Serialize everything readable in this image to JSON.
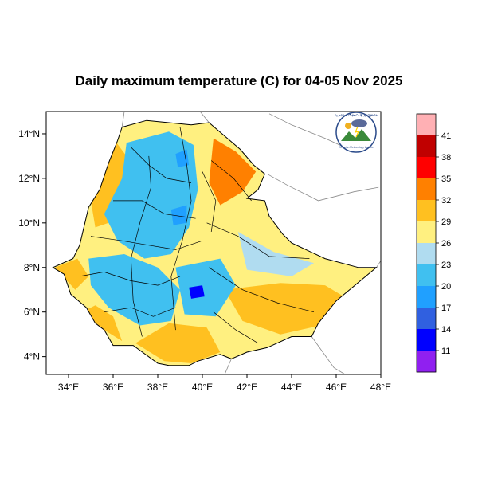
{
  "title": "Daily maximum temperature (C) for 04-05 Nov 2025",
  "map": {
    "lon_range": [
      33.0,
      48.0
    ],
    "lat_range": [
      3.2,
      15.0
    ],
    "x_ticks": [
      {
        "value": 34,
        "label": "34°E"
      },
      {
        "value": 36,
        "label": "36°E"
      },
      {
        "value": 38,
        "label": "38°E"
      },
      {
        "value": 40,
        "label": "40°E"
      },
      {
        "value": 42,
        "label": "42°E"
      },
      {
        "value": 44,
        "label": "44°E"
      },
      {
        "value": 46,
        "label": "46°E"
      },
      {
        "value": 48,
        "label": "48°E"
      }
    ],
    "y_ticks": [
      {
        "value": 14,
        "label": "14°N"
      },
      {
        "value": 12,
        "label": "12°N"
      },
      {
        "value": 10,
        "label": "10°N"
      },
      {
        "value": 8,
        "label": "8°N"
      },
      {
        "value": 6,
        "label": "6°N"
      },
      {
        "value": 4,
        "label": "4°N"
      }
    ],
    "ethiopia_outline": [
      [
        36.4,
        14.3
      ],
      [
        37.5,
        14.6
      ],
      [
        38.5,
        14.5
      ],
      [
        39.5,
        14.4
      ],
      [
        40.3,
        14.5
      ],
      [
        41.0,
        13.9
      ],
      [
        41.7,
        13.3
      ],
      [
        42.3,
        12.6
      ],
      [
        42.8,
        12.2
      ],
      [
        42.5,
        11.5
      ],
      [
        42.0,
        11.1
      ],
      [
        42.8,
        11.0
      ],
      [
        43.0,
        10.3
      ],
      [
        43.6,
        9.5
      ],
      [
        44.0,
        9.1
      ],
      [
        45.5,
        8.4
      ],
      [
        47.0,
        8.0
      ],
      [
        47.8,
        8.0
      ],
      [
        46.0,
        6.5
      ],
      [
        45.2,
        5.5
      ],
      [
        44.9,
        4.9
      ],
      [
        44.0,
        4.9
      ],
      [
        42.9,
        4.4
      ],
      [
        42.0,
        4.2
      ],
      [
        41.3,
        3.9
      ],
      [
        40.8,
        4.1
      ],
      [
        39.8,
        3.8
      ],
      [
        39.4,
        3.6
      ],
      [
        38.5,
        3.6
      ],
      [
        38.0,
        3.7
      ],
      [
        36.9,
        4.5
      ],
      [
        36.0,
        4.5
      ],
      [
        35.6,
        5.2
      ],
      [
        35.2,
        5.5
      ],
      [
        34.8,
        6.2
      ],
      [
        34.1,
        6.8
      ],
      [
        33.8,
        7.7
      ],
      [
        33.3,
        8.0
      ],
      [
        34.2,
        8.4
      ],
      [
        34.5,
        9.0
      ],
      [
        34.9,
        10.7
      ],
      [
        35.4,
        11.5
      ],
      [
        35.8,
        12.7
      ],
      [
        36.2,
        13.7
      ]
    ],
    "temperature_zones": [
      {
        "name": "warm-west-lowland",
        "value": 31,
        "points": [
          [
            35.0,
            11.0
          ],
          [
            35.5,
            12.5
          ],
          [
            36.0,
            13.8
          ],
          [
            36.6,
            13.0
          ],
          [
            36.4,
            11.5
          ],
          [
            35.8,
            10.0
          ],
          [
            35.2,
            9.8
          ]
        ]
      },
      {
        "name": "hot-afar",
        "value": 33,
        "points": [
          [
            40.5,
            13.8
          ],
          [
            41.5,
            13.2
          ],
          [
            42.4,
            12.3
          ],
          [
            41.8,
            11.4
          ],
          [
            40.8,
            10.8
          ],
          [
            40.3,
            11.8
          ]
        ]
      },
      {
        "name": "warm-east",
        "value": 28,
        "points": [
          [
            40.2,
            10.0
          ],
          [
            42.5,
            10.7
          ],
          [
            43.5,
            9.6
          ],
          [
            44.5,
            9.0
          ],
          [
            43.0,
            8.6
          ],
          [
            41.0,
            8.8
          ]
        ]
      },
      {
        "name": "warm-ogaden",
        "value": 30,
        "points": [
          [
            41.0,
            7.0
          ],
          [
            43.5,
            7.3
          ],
          [
            45.5,
            7.2
          ],
          [
            46.5,
            6.6
          ],
          [
            45.3,
            5.4
          ],
          [
            43.5,
            5.0
          ],
          [
            41.8,
            5.6
          ]
        ]
      },
      {
        "name": "warm-south",
        "value": 30,
        "points": [
          [
            37.0,
            4.6
          ],
          [
            38.3,
            3.8
          ],
          [
            39.5,
            3.7
          ],
          [
            40.8,
            4.2
          ],
          [
            40.2,
            5.3
          ],
          [
            38.5,
            5.5
          ]
        ]
      },
      {
        "name": "warm-southwest",
        "value": 29,
        "points": [
          [
            34.6,
            6.0
          ],
          [
            35.6,
            5.2
          ],
          [
            36.4,
            4.7
          ],
          [
            36.0,
            5.8
          ],
          [
            35.2,
            6.3
          ]
        ]
      },
      {
        "name": "warm-gambela",
        "value": 29,
        "points": [
          [
            33.4,
            8.0
          ],
          [
            34.3,
            7.0
          ],
          [
            34.9,
            7.6
          ],
          [
            34.4,
            8.4
          ]
        ]
      },
      {
        "name": "cool-central-highlands",
        "value": 22,
        "points": [
          [
            36.6,
            13.6
          ],
          [
            38.5,
            14.1
          ],
          [
            39.6,
            13.5
          ],
          [
            39.8,
            11.5
          ],
          [
            39.4,
            9.8
          ],
          [
            38.6,
            8.6
          ],
          [
            37.4,
            8.4
          ],
          [
            36.2,
            9.2
          ],
          [
            35.6,
            10.4
          ],
          [
            36.4,
            12.0
          ]
        ]
      },
      {
        "name": "cool-southwest-highlands",
        "value": 21,
        "points": [
          [
            34.9,
            8.4
          ],
          [
            36.5,
            8.6
          ],
          [
            38.0,
            8.0
          ],
          [
            39.0,
            7.0
          ],
          [
            38.6,
            5.6
          ],
          [
            37.2,
            5.4
          ],
          [
            35.8,
            6.2
          ],
          [
            35.0,
            7.2
          ]
        ]
      },
      {
        "name": "cool-bale",
        "value": 20,
        "points": [
          [
            38.8,
            8.0
          ],
          [
            40.8,
            8.4
          ],
          [
            41.5,
            7.2
          ],
          [
            40.6,
            5.8
          ],
          [
            39.2,
            5.9
          ]
        ]
      },
      {
        "name": "mild-east-highlands",
        "value": 24,
        "points": [
          [
            41.6,
            9.6
          ],
          [
            43.2,
            8.7
          ],
          [
            45.0,
            8.2
          ],
          [
            44.0,
            7.6
          ],
          [
            42.0,
            7.9
          ]
        ]
      },
      {
        "name": "cold-peak-semien",
        "value": 17,
        "points": [
          [
            38.8,
            13.1
          ],
          [
            39.3,
            13.3
          ],
          [
            39.4,
            12.6
          ],
          [
            38.9,
            12.5
          ]
        ]
      },
      {
        "name": "cold-peak-central",
        "value": 17,
        "points": [
          [
            38.6,
            10.6
          ],
          [
            39.3,
            10.8
          ],
          [
            39.3,
            10.0
          ],
          [
            38.7,
            9.9
          ]
        ]
      },
      {
        "name": "cold-peak-bale",
        "value": 13,
        "points": [
          [
            39.4,
            7.1
          ],
          [
            40.0,
            7.2
          ],
          [
            40.1,
            6.7
          ],
          [
            39.5,
            6.6
          ]
        ]
      }
    ],
    "admin_lines": [
      [
        [
          36.8,
          13.4
        ],
        [
          37.6,
          12.6
        ],
        [
          38.4,
          12.0
        ],
        [
          39.5,
          11.8
        ]
      ],
      [
        [
          36.0,
          11.0
        ],
        [
          37.3,
          11.0
        ],
        [
          38.3,
          10.4
        ],
        [
          39.7,
          10.2
        ]
      ],
      [
        [
          35.0,
          9.4
        ],
        [
          36.4,
          9.2
        ],
        [
          37.6,
          9.0
        ],
        [
          38.8,
          8.8
        ],
        [
          40.0,
          9.2
        ]
      ],
      [
        [
          34.5,
          7.6
        ],
        [
          35.6,
          7.8
        ],
        [
          36.8,
          7.4
        ],
        [
          38.0,
          7.2
        ],
        [
          39.0,
          7.6
        ]
      ],
      [
        [
          35.6,
          6.0
        ],
        [
          36.8,
          6.2
        ],
        [
          37.8,
          5.8
        ],
        [
          38.8,
          6.2
        ]
      ],
      [
        [
          37.6,
          13.0
        ],
        [
          37.7,
          11.6
        ],
        [
          37.2,
          10.0
        ],
        [
          36.8,
          8.4
        ],
        [
          36.9,
          6.5
        ],
        [
          37.3,
          4.9
        ]
      ],
      [
        [
          39.0,
          14.3
        ],
        [
          39.3,
          12.6
        ],
        [
          39.5,
          11.0
        ],
        [
          39.1,
          9.2
        ],
        [
          38.6,
          7.6
        ],
        [
          38.8,
          5.2
        ]
      ],
      [
        [
          40.2,
          10.0
        ],
        [
          41.6,
          9.4
        ],
        [
          43.0,
          8.5
        ],
        [
          44.8,
          8.4
        ]
      ],
      [
        [
          40.3,
          8.0
        ],
        [
          41.8,
          7.0
        ],
        [
          43.4,
          6.4
        ],
        [
          45.0,
          6.0
        ]
      ],
      [
        [
          40.5,
          6.0
        ],
        [
          41.5,
          5.2
        ],
        [
          42.5,
          4.6
        ]
      ],
      [
        [
          42.2,
          11.0
        ],
        [
          41.4,
          12.0
        ],
        [
          40.4,
          12.8
        ]
      ],
      [
        [
          40.0,
          12.3
        ],
        [
          40.6,
          11.0
        ],
        [
          40.4,
          9.6
        ]
      ]
    ],
    "neighbor_lines": [
      [
        [
          36.5,
          15.0
        ],
        [
          36.4,
          14.3
        ]
      ],
      [
        [
          39.9,
          15.0
        ],
        [
          40.3,
          14.5
        ]
      ],
      [
        [
          43.0,
          14.9
        ],
        [
          44.0,
          14.4
        ],
        [
          45.5,
          13.8
        ],
        [
          46.8,
          13.2
        ]
      ],
      [
        [
          42.9,
          12.2
        ],
        [
          43.8,
          11.7
        ],
        [
          45.2,
          11.0
        ],
        [
          46.8,
          11.4
        ],
        [
          47.9,
          11.6
        ]
      ],
      [
        [
          47.8,
          8.0
        ],
        [
          48.0,
          8.3
        ]
      ],
      [
        [
          44.9,
          4.9
        ],
        [
          45.9,
          3.5
        ],
        [
          46.4,
          3.2
        ]
      ],
      [
        [
          41.3,
          3.9
        ],
        [
          41.0,
          3.2
        ]
      ]
    ]
  },
  "colorbar": {
    "colors": [
      "#ffb0b4",
      "#c00000",
      "#ff0000",
      "#ff8000",
      "#ffc020",
      "#fff080",
      "#b0dcf0",
      "#40c0f0",
      "#20a0ff",
      "#3060e0",
      "#0000ff",
      "#9020f0"
    ],
    "labels": [
      "41",
      "38",
      "35",
      "32",
      "29",
      "26",
      "23",
      "20",
      "17",
      "14",
      "11"
    ]
  },
  "logo": {
    "text_top": "የኢትዮጵያ ሜቲዎሮሎጂ ኢንስቲትዩት",
    "text_bottom": "Ethiopian Meteorology Institute"
  }
}
